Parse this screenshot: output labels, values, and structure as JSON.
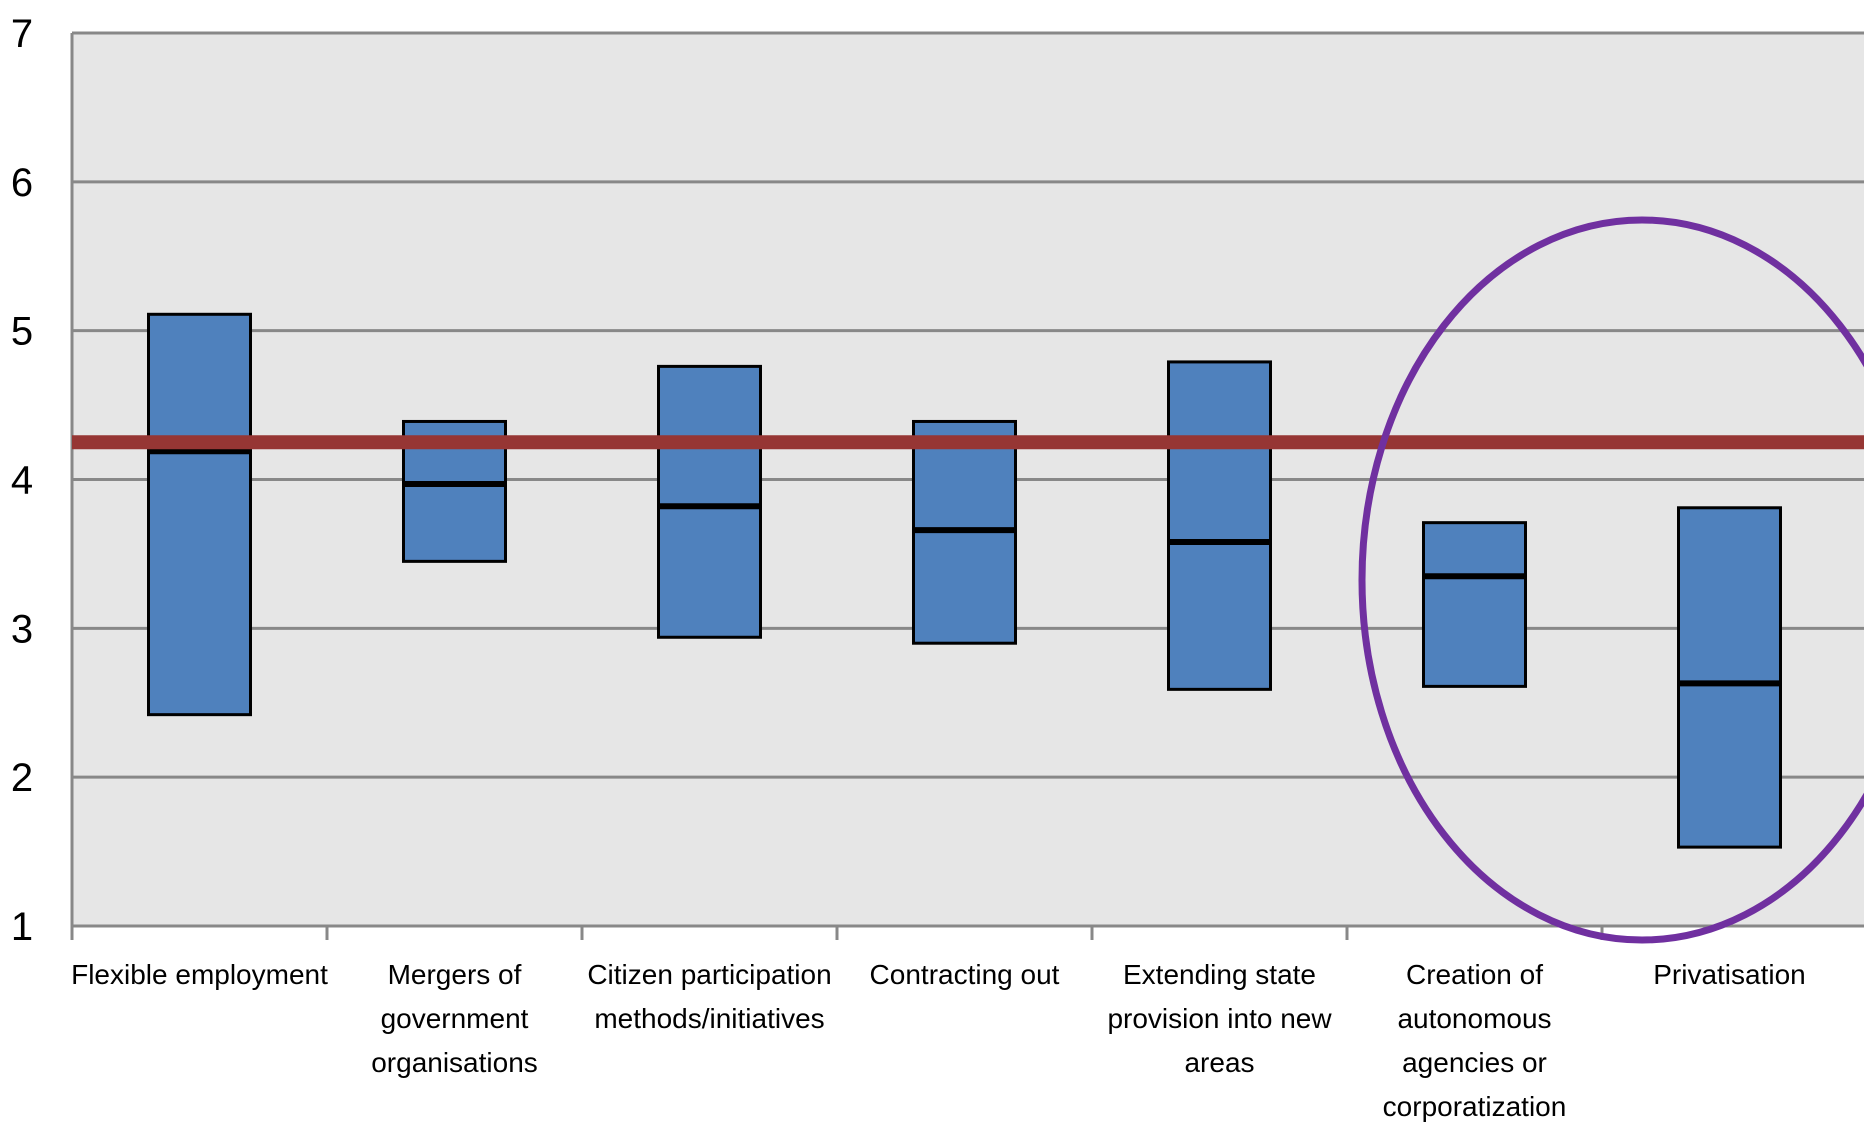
{
  "chart_data": {
    "type": "box",
    "title": "",
    "xlabel": "",
    "ylabel": "",
    "ylim": [
      1,
      7
    ],
    "yticks": [
      "1",
      "2",
      "3",
      "4",
      "5",
      "6",
      "7"
    ],
    "grid": true,
    "categories": [
      [
        "Flexible employment"
      ],
      [
        "Mergers of",
        "government",
        "organisations"
      ],
      [
        "Citizen participation",
        "methods/initiatives"
      ],
      [
        "Contracting out"
      ],
      [
        "Extending state",
        "provision into new",
        "areas"
      ],
      [
        "Creation of",
        "autonomous",
        "agencies or",
        "corporatization"
      ],
      [
        "Privatisation"
      ]
    ],
    "boxes": [
      {
        "low": 2.42,
        "median": 4.19,
        "high": 5.11
      },
      {
        "low": 3.45,
        "median": 3.97,
        "high": 4.39
      },
      {
        "low": 2.94,
        "median": 3.82,
        "high": 4.76
      },
      {
        "low": 2.9,
        "median": 3.66,
        "high": 4.39
      },
      {
        "low": 2.59,
        "median": 3.58,
        "high": 4.79
      },
      {
        "low": 2.61,
        "median": 3.35,
        "high": 3.71
      },
      {
        "low": 1.53,
        "median": 2.63,
        "high": 3.81
      }
    ],
    "reference_line": {
      "value": 4.25,
      "color": "#963634"
    },
    "highlight": {
      "categories": [
        5,
        6
      ],
      "shape": "ellipse",
      "color": "#7030A0"
    },
    "colors": {
      "box_fill": "#4F81BD",
      "plot_bg": "#E6E6E6",
      "grid": "#888888",
      "axis": "#888888"
    }
  }
}
